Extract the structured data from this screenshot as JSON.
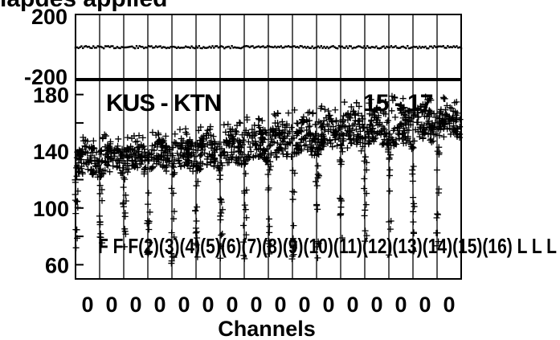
{
  "chart_data": [
    {
      "type": "scatter",
      "title": "lapdes applied",
      "ylim": [
        -200,
        200
      ],
      "yticks": [
        "200",
        "-200"
      ],
      "baseline": 0,
      "grid": true,
      "colors": {
        "marker": "#000000",
        "background": "#ffffff"
      }
    },
    {
      "type": "scatter",
      "annotation": "KUS - KTN",
      "annotation_extra": "15 - 17",
      "xlabel": "Channels",
      "x_tick_labels": [
        "0",
        "0",
        "0",
        "0",
        "0",
        "0",
        "0",
        "0",
        "0",
        "0",
        "0",
        "0",
        "0",
        "0",
        "0",
        "0"
      ],
      "ylim": [
        50,
        190
      ],
      "yticks": [
        180,
        140,
        100,
        60
      ],
      "grid": true,
      "marker": "plus",
      "channel_labels": [
        "F",
        "F",
        "F",
        "F(2)",
        "F(3)",
        "F(4)",
        "F(5)",
        "F(6)",
        "F(7)",
        "F(8)",
        "F(9)",
        "F(10)",
        "F(11)",
        "F(12)",
        "F(13)",
        "F(14)",
        "F(15)",
        "F(16)",
        "L",
        "L",
        "L"
      ],
      "channel_labels_text": "F F F(2)(3)(4)(5)(6)(7)(8)(9)(10)(11)(12)(13)(14)(15)(16) L L L",
      "series": [
        {
          "channels": [
            1,
            2,
            3,
            4,
            5,
            6,
            7,
            8,
            9,
            10,
            11,
            12,
            13,
            14,
            15,
            16
          ],
          "median": [
            136,
            137,
            138,
            139,
            140,
            142,
            145,
            148,
            150,
            153,
            155,
            157,
            159,
            160,
            162,
            163
          ],
          "upper_envelope": [
            150,
            152,
            152,
            154,
            156,
            158,
            162,
            165,
            168,
            170,
            172,
            175,
            177,
            179,
            180,
            178
          ],
          "dip_min": [
            62,
            60,
            60,
            60,
            61,
            61,
            62,
            62,
            63,
            63,
            64,
            64,
            65,
            65,
            65,
            65
          ]
        }
      ],
      "colors": {
        "marker": "#000000",
        "background": "#ffffff"
      }
    }
  ]
}
